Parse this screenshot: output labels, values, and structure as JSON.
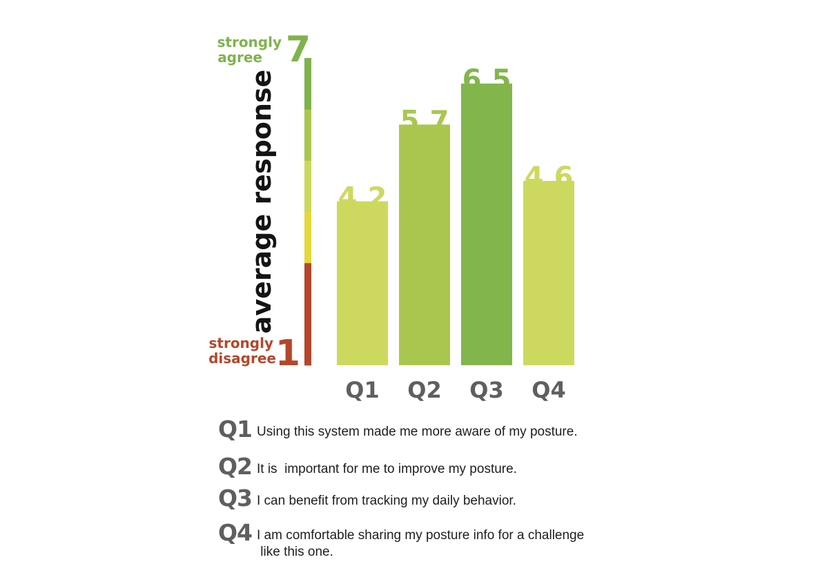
{
  "chart_data": {
    "type": "bar",
    "categories": [
      "Q1",
      "Q2",
      "Q3",
      "Q4"
    ],
    "values": [
      4.2,
      5.7,
      6.5,
      4.6
    ],
    "value_labels": [
      "4.2",
      "5.7",
      "6.5",
      "4.6"
    ],
    "ylabel": "average response",
    "ylim": [
      1,
      7
    ],
    "scale": {
      "top_value": "7",
      "top_label": [
        "strongly",
        "agree"
      ],
      "bottom_value": "1",
      "bottom_label": [
        "strongly",
        "disagree"
      ],
      "segment_colors": [
        "#b5462b",
        "#b5462b",
        "#e6d83a",
        "#cbd85c",
        "#a9c74e",
        "#7fb34c"
      ]
    },
    "bar_colors": [
      "#cdd95e",
      "#a9c74e",
      "#82b64c",
      "#cdd95e"
    ],
    "grid": false,
    "legend": "none"
  },
  "questions": [
    {
      "code": "Q1",
      "text": "Using this system made me more aware of my posture."
    },
    {
      "code": "Q2",
      "text": "It is  important for me to improve my posture."
    },
    {
      "code": "Q3",
      "text": "I can benefit from tracking my daily behavior."
    },
    {
      "code": "Q4",
      "text": "I am comfortable sharing my posture info for a challenge\n like this one."
    }
  ]
}
